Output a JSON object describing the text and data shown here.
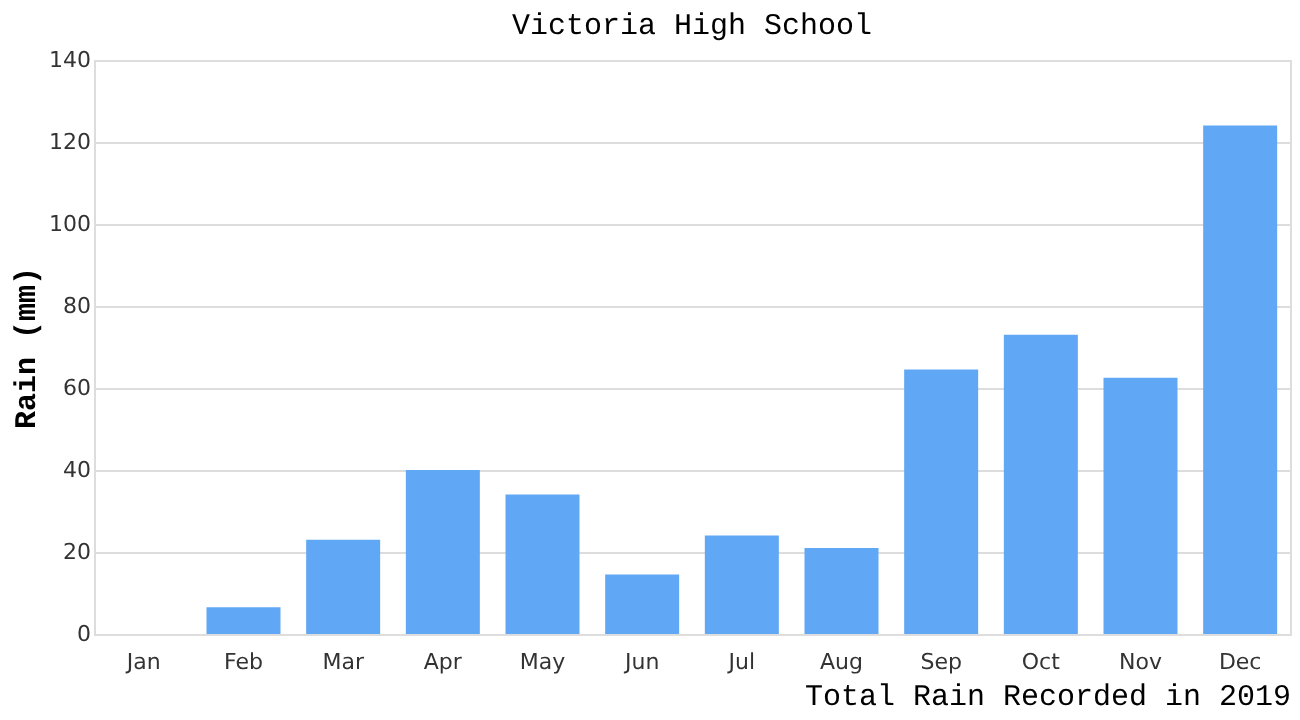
{
  "chart_data": {
    "type": "bar",
    "title": "Victoria High School",
    "xlabel": "Total Rain Recorded in 2019",
    "ylabel": "Rain (mm)",
    "categories": [
      "Jan",
      "Feb",
      "Mar",
      "Apr",
      "May",
      "Jun",
      "Jul",
      "Aug",
      "Sep",
      "Oct",
      "Nov",
      "Dec"
    ],
    "values": [
      0,
      6.5,
      23,
      40,
      34,
      14.5,
      24,
      21,
      64.5,
      73,
      62.5,
      124
    ],
    "color": "#60a8f5",
    "ylim": [
      0,
      140
    ],
    "yticks": [
      0,
      20,
      40,
      60,
      80,
      100,
      120,
      140
    ],
    "grid": "y"
  }
}
